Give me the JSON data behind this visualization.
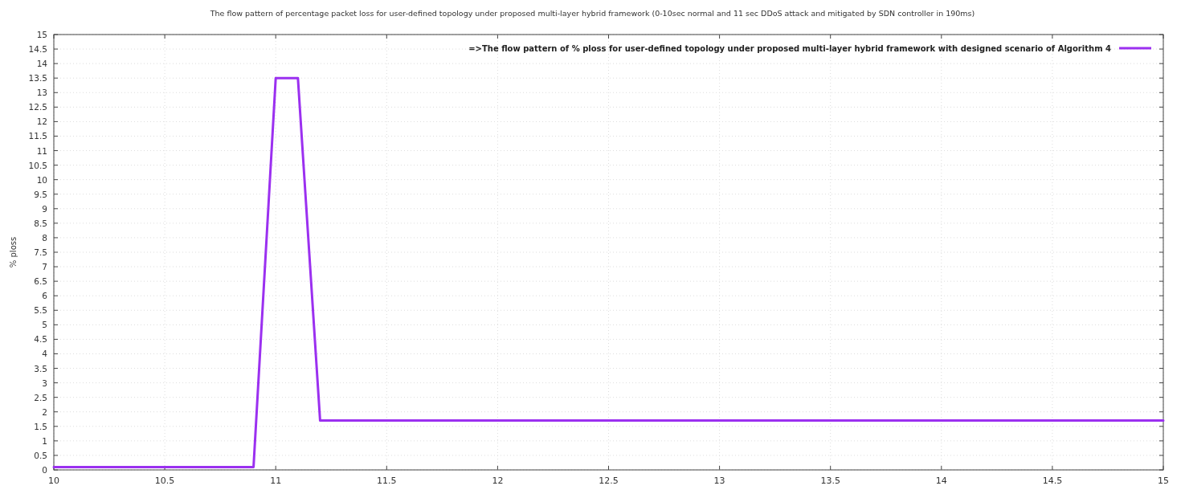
{
  "chart_data": {
    "type": "line",
    "title": "The flow pattern of percentage packet loss for user-defined topology under proposed multi-layer hybrid framework (0-10sec normal and 11 sec DDoS attack and mitigated by SDN controller in 190ms)",
    "ylabel": "% ploss",
    "x": [
      10,
      10.9,
      11,
      11.1,
      11.2,
      15
    ],
    "series": [
      {
        "name": "=>The flow pattern of % ploss for user-defined topology under proposed multi-layer hybrid framework with designed scenario of Algorithm 4",
        "color": "#9b30f0",
        "values": [
          0.1,
          0.1,
          13.5,
          13.5,
          1.7,
          1.7
        ]
      }
    ],
    "xlim": [
      10,
      15
    ],
    "xticks": [
      10,
      10.5,
      11,
      11.5,
      12,
      12.5,
      13,
      13.5,
      14,
      14.5,
      15
    ],
    "ylim": [
      0,
      15
    ],
    "yticks": [
      0,
      0.5,
      1,
      1.5,
      2,
      2.5,
      3,
      3.5,
      4,
      4.5,
      5,
      5.5,
      6,
      6.5,
      7,
      7.5,
      8,
      8.5,
      9,
      9.5,
      10,
      10.5,
      11,
      11.5,
      12,
      12.5,
      13,
      13.5,
      14,
      14.5,
      15
    ],
    "grid": true,
    "legend": "top right",
    "marker": "none",
    "line_style": "solid"
  }
}
